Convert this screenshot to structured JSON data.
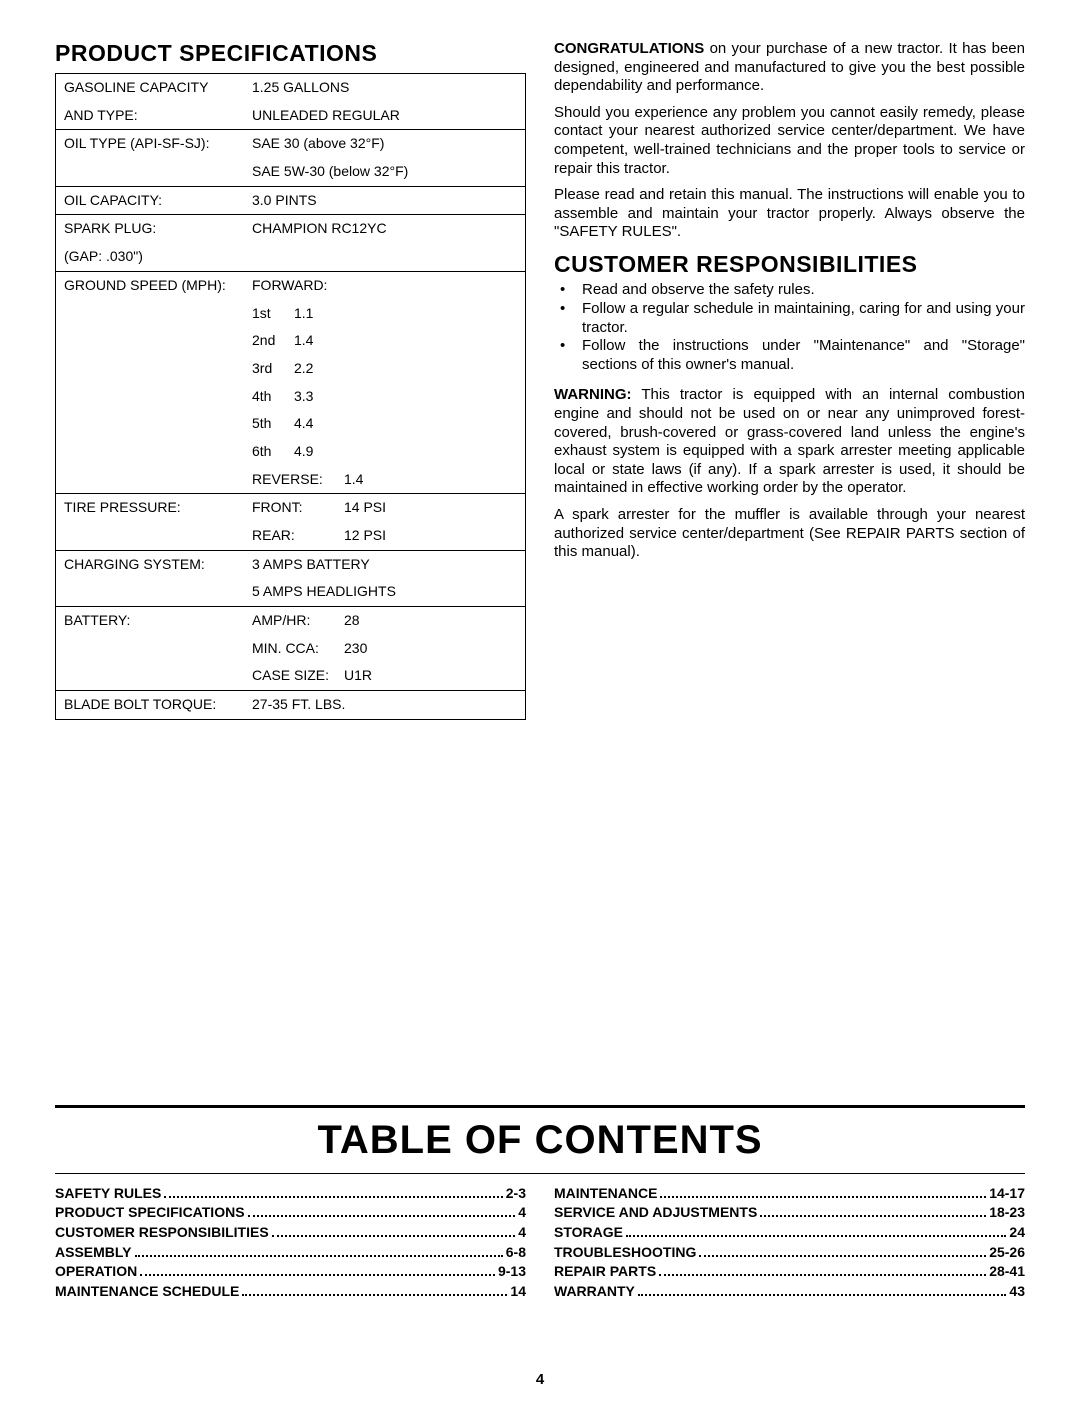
{
  "headings": {
    "product_specs": "PRODUCT SPECIFICATIONS",
    "customer_resp": "CUSTOMER RESPONSIBILITIES",
    "toc": "TABLE OF CONTENTS"
  },
  "specs": {
    "gas_label1": "GASOLINE CAPACITY",
    "gas_label2": "AND TYPE:",
    "gas_val1": "1.25 GALLONS",
    "gas_val2": "UNLEADED REGULAR",
    "oil_type_label": "OIL TYPE (API-SF-SJ):",
    "oil_type_val1": "SAE 30 (above 32°F)",
    "oil_type_val2": "SAE 5W-30 (below 32°F)",
    "oil_cap_label": "OIL CAPACITY:",
    "oil_cap_val": "3.0 PINTS",
    "spark_label1": "SPARK PLUG:",
    "spark_label2": "(GAP:  .030\")",
    "spark_val": "CHAMPION RC12YC",
    "ground_label": "GROUND SPEED (MPH):",
    "forward": "FORWARD:",
    "g1": "1st",
    "g1v": "1.1",
    "g2": "2nd",
    "g2v": "1.4",
    "g3": "3rd",
    "g3v": "2.2",
    "g4": "4th",
    "g4v": "3.3",
    "g5": "5th",
    "g5v": "4.4",
    "g6": "6th",
    "g6v": "4.9",
    "reverse_label": "REVERSE:",
    "reverse_val": "1.4",
    "tire_label": "TIRE PRESSURE:",
    "tire_front": "FRONT:",
    "tire_front_val": "14 PSI",
    "tire_rear": "REAR:",
    "tire_rear_val": "12 PSI",
    "charge_label": "CHARGING SYSTEM:",
    "charge_val1": "3 AMPS BATTERY",
    "charge_val2": "5 AMPS HEADLIGHTS",
    "battery_label": "BATTERY:",
    "bat_amp": "AMP/HR:",
    "bat_amp_v": "28",
    "bat_cca": "MIN. CCA:",
    "bat_cca_v": "230",
    "bat_case": "CASE SIZE:",
    "bat_case_v": "U1R",
    "blade_label": "BLADE BOLT TORQUE:",
    "blade_val": "27-35 FT. LBS."
  },
  "paragraphs": {
    "congrats_bold": "CONGRATULATIONS",
    "congrats_rest": "  on your purchase of a new tractor. It has been designed, engineered and manufactured to give you the best possible dependability and performance.",
    "p2": "Should you experience any problem you cannot easily remedy, please contact your nearest authorized service center/department. We have competent, well-trained technicians and the proper tools to service or repair this tractor.",
    "p3": "Please read and retain this manual.  The instructions will enable you to assemble and maintain your tractor properly. Always observe the \"SAFETY RULES\".",
    "b1": "Read and observe the safety rules.",
    "b2": "Follow a regular schedule in maintaining, caring for and using your tractor.",
    "b3": "Follow the instructions under \"Maintenance\" and \"Storage\" sections of this owner's manual.",
    "warn_bold": "WARNING:",
    "warn_rest": "  This tractor is equipped with an internal combustion engine and should not be used on or near any unimproved forest-covered, brush-covered or grass-covered land unless the engine's exhaust system is equipped with a spark arrester meeting applicable local or state laws (if any).  If a spark arrester is used, it should be maintained in effective working order by the operator.",
    "p4": "A spark arrester for the muffler is available through your nearest authorized service center/department (See REPAIR PARTS section of this manual)."
  },
  "toc_left": [
    {
      "label": "SAFETY RULES",
      "page": "2-3"
    },
    {
      "label": "PRODUCT SPECIFICATIONS",
      "page": "4"
    },
    {
      "label": "CUSTOMER RESPONSIBILITIES",
      "page": "4"
    },
    {
      "label": "ASSEMBLY",
      "page": "6-8"
    },
    {
      "label": "OPERATION",
      "page": "9-13"
    },
    {
      "label": "MAINTENANCE SCHEDULE",
      "page": "14"
    }
  ],
  "toc_right": [
    {
      "label": "MAINTENANCE",
      "page": "14-17"
    },
    {
      "label": "SERVICE AND ADJUSTMENTS",
      "page": "18-23"
    },
    {
      "label": "STORAGE",
      "page": "24"
    },
    {
      "label": "TROUBLESHOOTING",
      "page": "25-26"
    },
    {
      "label": "REPAIR PARTS",
      "page": "28-41"
    },
    {
      "label": "WARRANTY",
      "page": "43"
    }
  ],
  "page_number": "4"
}
